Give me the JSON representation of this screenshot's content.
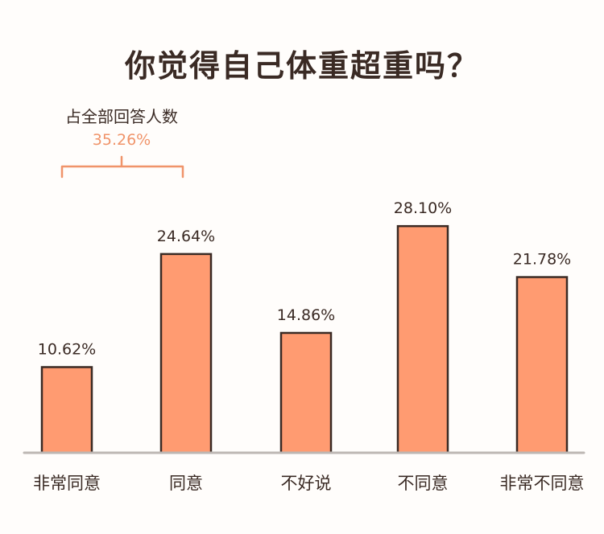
{
  "chart_data": {
    "type": "bar",
    "title": "你觉得自己体重超重吗？",
    "categories": [
      "非常同意",
      "同意",
      "不好说",
      "不同意",
      "非常不同意"
    ],
    "values": [
      10.62,
      24.64,
      14.86,
      28.1,
      21.78
    ],
    "value_labels": [
      "10.62%",
      "24.64%",
      "14.86%",
      "28.10%",
      "21.78%"
    ],
    "unit": "%",
    "ylim": [
      0,
      34
    ],
    "grid": false,
    "legend": "none",
    "annotation": {
      "label": "占全部回答人数",
      "value": "35.26%",
      "spans_categories": [
        "非常同意",
        "同意"
      ]
    }
  },
  "colors": {
    "bar_fill": "#ff9b71",
    "bar_stroke": "#3a2a24",
    "annotation_accent": "#f0946a",
    "baseline": "#bdb7b3",
    "text": "#3a2a24",
    "background": "#fffdfb"
  }
}
